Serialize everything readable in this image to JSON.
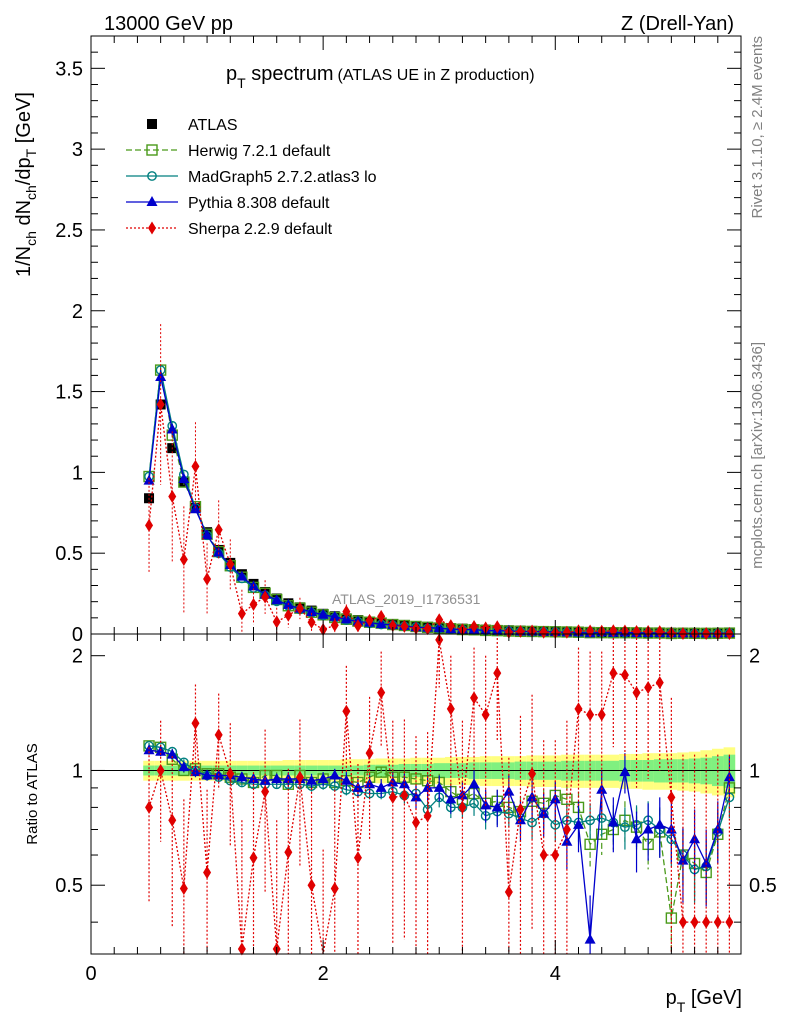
{
  "header": {
    "left": "13000 GeV pp",
    "right": "Z (Drell-Yan)"
  },
  "side_labels": {
    "rivet": "Rivet 3.1.10, ≥ 2.4M events",
    "mcplots": "mcplots.cern.ch [arXiv:1306.3436]"
  },
  "watermark": "ATLAS_2019_I1736531",
  "chart_data": {
    "type": "line",
    "title_main": "p",
    "title_sub": "T",
    "title_rest": " spectrum",
    "title_paren": "(ATLAS UE in Z production)",
    "xlabel_main": "p",
    "xlabel_sub": "T",
    "xlabel_rest": " [GeV]",
    "ylabel": "1/N_ch dN_ch/dp_T [GeV]",
    "ratio_ylabel": "Ratio to ATLAS",
    "xlim": [
      0,
      5.6
    ],
    "ylim": [
      0,
      3.7
    ],
    "ratio_ylim": [
      0.33,
      2.28
    ],
    "xticks": [
      "0",
      "2",
      "4"
    ],
    "yticks": [
      "0",
      "0.5",
      "1",
      "1.5",
      "2",
      "2.5",
      "3",
      "3.5"
    ],
    "ratio_yticks": [
      "0.5",
      "1",
      "2"
    ],
    "x": [
      0.5,
      0.6,
      0.7,
      0.8,
      0.9,
      1.0,
      1.1,
      1.2,
      1.3,
      1.4,
      1.5,
      1.6,
      1.7,
      1.8,
      1.9,
      2.0,
      2.1,
      2.2,
      2.3,
      2.4,
      2.5,
      2.6,
      2.7,
      2.8,
      2.9,
      3.0,
      3.1,
      3.2,
      3.3,
      3.4,
      3.5,
      3.6,
      3.7,
      3.8,
      3.9,
      4.0,
      4.1,
      4.2,
      4.3,
      4.4,
      4.5,
      4.6,
      4.7,
      4.8,
      4.9,
      5.0,
      5.1,
      5.2,
      5.3,
      5.4,
      5.5
    ],
    "atlas": [
      0.84,
      1.42,
      1.15,
      0.94,
      0.78,
      0.63,
      0.52,
      0.44,
      0.37,
      0.31,
      0.26,
      0.22,
      0.19,
      0.165,
      0.145,
      0.125,
      0.11,
      0.097,
      0.086,
      0.076,
      0.068,
      0.061,
      0.055,
      0.049,
      0.044,
      0.04,
      0.036,
      0.033,
      0.03,
      0.027,
      0.025,
      0.023,
      0.021,
      0.019,
      0.018,
      0.016,
      0.015,
      0.014,
      0.013,
      0.012,
      0.011,
      0.0105,
      0.0098,
      0.0092,
      0.0087,
      0.0082,
      0.0077,
      0.0073,
      0.0069,
      0.0066,
      0.0063
    ],
    "band_stat": [
      0.03,
      0.03,
      0.03,
      0.03,
      0.03,
      0.03,
      0.03,
      0.03,
      0.03,
      0.03,
      0.03,
      0.03,
      0.03,
      0.03,
      0.03,
      0.03,
      0.03,
      0.03,
      0.03,
      0.035,
      0.035,
      0.035,
      0.04,
      0.04,
      0.04,
      0.045,
      0.045,
      0.045,
      0.05,
      0.05,
      0.05,
      0.05,
      0.055,
      0.055,
      0.055,
      0.055,
      0.06,
      0.06,
      0.06,
      0.06,
      0.06,
      0.065,
      0.065,
      0.065,
      0.07,
      0.07,
      0.07,
      0.075,
      0.08,
      0.09,
      0.1
    ],
    "band_total": [
      0.06,
      0.06,
      0.06,
      0.06,
      0.06,
      0.06,
      0.06,
      0.06,
      0.06,
      0.06,
      0.06,
      0.06,
      0.065,
      0.065,
      0.065,
      0.065,
      0.065,
      0.07,
      0.07,
      0.07,
      0.075,
      0.075,
      0.075,
      0.08,
      0.08,
      0.08,
      0.085,
      0.085,
      0.085,
      0.09,
      0.09,
      0.09,
      0.09,
      0.095,
      0.095,
      0.095,
      0.1,
      0.1,
      0.1,
      0.1,
      0.1,
      0.105,
      0.105,
      0.11,
      0.11,
      0.11,
      0.115,
      0.12,
      0.13,
      0.14,
      0.15
    ],
    "series": [
      {
        "name": "ATLAS",
        "color": "#000000",
        "marker": "square-filled",
        "values": [
          0.84,
          1.42,
          1.15,
          0.94,
          0.78,
          0.63,
          0.52,
          0.44,
          0.37,
          0.31,
          0.26,
          0.22,
          0.19,
          0.165,
          0.145,
          0.125,
          0.11,
          0.097,
          0.086,
          0.076,
          0.068,
          0.061,
          0.055,
          0.049,
          0.044,
          0.04,
          0.036,
          0.033,
          0.03,
          0.027,
          0.025,
          0.023,
          0.021,
          0.019,
          0.018,
          0.016,
          0.015,
          0.014,
          0.013,
          0.012,
          0.011,
          0.0105,
          0.0098,
          0.0092,
          0.0087,
          0.0082,
          0.0077,
          0.0073,
          0.0069,
          0.0066,
          0.0063
        ]
      },
      {
        "name": "Herwig 7.2.1 default",
        "color": "#4a9a1a",
        "marker": "square-open",
        "dash": "6,3",
        "ratio": [
          1.16,
          1.15,
          1.07,
          1.0,
          1.01,
          0.98,
          0.98,
          0.96,
          0.95,
          0.93,
          0.97,
          0.97,
          0.92,
          0.97,
          0.93,
          0.95,
          0.93,
          0.94,
          0.93,
          0.96,
          0.99,
          0.96,
          0.96,
          0.95,
          0.94,
          0.93,
          0.88,
          0.84,
          0.87,
          0.82,
          0.83,
          0.8,
          0.78,
          0.83,
          0.82,
          0.86,
          0.84,
          0.8,
          0.64,
          0.68,
          0.7,
          0.74,
          0.71,
          0.64,
          0.69,
          0.41,
          0.6,
          0.57,
          0.54,
          0.68,
          0.9
        ],
        "ratio_err": [
          0.02,
          0.02,
          0.02,
          0.02,
          0.02,
          0.02,
          0.02,
          0.02,
          0.02,
          0.02,
          0.02,
          0.02,
          0.02,
          0.03,
          0.03,
          0.03,
          0.03,
          0.03,
          0.03,
          0.03,
          0.03,
          0.04,
          0.04,
          0.04,
          0.04,
          0.05,
          0.05,
          0.05,
          0.06,
          0.06,
          0.06,
          0.06,
          0.07,
          0.07,
          0.07,
          0.07,
          0.08,
          0.08,
          0.08,
          0.08,
          0.08,
          0.09,
          0.09,
          0.09,
          0.1,
          0.1,
          0.1,
          0.1,
          0.1,
          0.1,
          0.1
        ]
      },
      {
        "name": "MadGraph5 2.7.2.atlas3 lo",
        "color": "#007f7f",
        "marker": "circle-open",
        "ratio": [
          1.16,
          1.15,
          1.12,
          1.05,
          1.0,
          0.97,
          0.96,
          0.94,
          0.93,
          0.92,
          0.92,
          0.92,
          0.92,
          0.92,
          0.91,
          0.92,
          0.91,
          0.89,
          0.88,
          0.87,
          0.87,
          0.88,
          0.86,
          0.87,
          0.79,
          0.85,
          0.8,
          0.8,
          0.82,
          0.76,
          0.78,
          0.77,
          0.75,
          0.73,
          0.77,
          0.72,
          0.74,
          0.73,
          0.74,
          0.75,
          0.73,
          0.71,
          0.72,
          0.74,
          0.7,
          0.66,
          0.6,
          0.55,
          0.56,
          0.69,
          0.85
        ],
        "ratio_err": [
          0.02,
          0.02,
          0.02,
          0.02,
          0.02,
          0.02,
          0.02,
          0.02,
          0.02,
          0.02,
          0.02,
          0.02,
          0.02,
          0.03,
          0.03,
          0.03,
          0.03,
          0.03,
          0.03,
          0.03,
          0.03,
          0.04,
          0.04,
          0.04,
          0.04,
          0.05,
          0.05,
          0.05,
          0.06,
          0.06,
          0.06,
          0.06,
          0.07,
          0.07,
          0.07,
          0.07,
          0.08,
          0.08,
          0.08,
          0.08,
          0.08,
          0.09,
          0.09,
          0.09,
          0.1,
          0.1,
          0.1,
          0.1,
          0.1,
          0.1,
          0.1
        ]
      },
      {
        "name": "Pythia 8.308 default",
        "color": "#0000cc",
        "marker": "triangle-filled",
        "ratio": [
          1.13,
          1.12,
          1.1,
          1.02,
          0.99,
          0.97,
          0.97,
          0.97,
          0.96,
          0.95,
          0.94,
          0.95,
          0.95,
          0.95,
          0.94,
          0.95,
          0.97,
          0.94,
          0.9,
          0.92,
          0.9,
          0.93,
          0.92,
          0.85,
          0.9,
          0.9,
          0.84,
          0.86,
          0.92,
          0.81,
          0.8,
          0.88,
          0.74,
          0.85,
          0.77,
          0.84,
          0.65,
          0.72,
          0.36,
          0.89,
          0.73,
          0.99,
          0.66,
          0.7,
          0.72,
          0.7,
          0.58,
          0.66,
          0.57,
          0.7,
          0.96
        ],
        "ratio_err": [
          0.03,
          0.03,
          0.03,
          0.03,
          0.03,
          0.03,
          0.03,
          0.03,
          0.03,
          0.03,
          0.03,
          0.03,
          0.04,
          0.04,
          0.04,
          0.04,
          0.04,
          0.05,
          0.05,
          0.05,
          0.05,
          0.06,
          0.06,
          0.06,
          0.07,
          0.07,
          0.07,
          0.08,
          0.08,
          0.08,
          0.09,
          0.09,
          0.09,
          0.1,
          0.1,
          0.1,
          0.1,
          0.11,
          0.11,
          0.11,
          0.12,
          0.12,
          0.12,
          0.12,
          0.13,
          0.13,
          0.13,
          0.13,
          0.13,
          0.13,
          0.13
        ]
      },
      {
        "name": "Sherpa 2.2.9 default",
        "color": "#e00000",
        "marker": "diamond-filled",
        "dash": "2,2",
        "ratio": [
          0.8,
          1.0,
          0.74,
          0.49,
          1.33,
          0.54,
          1.24,
          0.98,
          0.34,
          0.59,
          0.88,
          0.34,
          0.61,
          0.96,
          0.5,
          0.22,
          0.49,
          1.43,
          0.59,
          1.11,
          1.6,
          0.85,
          0.86,
          0.73,
          0.76,
          2.2,
          1.45,
          0.8,
          1.55,
          1.4,
          1.8,
          0.48,
          0.79,
          0.98,
          0.6,
          0.6,
          0.7,
          1.45,
          1.4,
          1.4,
          1.8,
          1.78,
          1.6,
          1.65,
          1.7,
          0.85,
          0.4,
          0.4,
          0.4,
          0.4,
          0.4
        ],
        "ratio_err": [
          0.35,
          0.35,
          0.35,
          0.35,
          0.35,
          0.35,
          0.35,
          0.35,
          0.4,
          0.4,
          0.4,
          0.4,
          0.4,
          0.4,
          0.4,
          0.4,
          0.4,
          0.45,
          0.45,
          0.45,
          0.45,
          0.5,
          0.5,
          0.5,
          0.5,
          0.55,
          0.55,
          0.55,
          0.55,
          0.6,
          0.6,
          0.6,
          0.6,
          0.6,
          0.6,
          0.6,
          0.65,
          0.65,
          0.65,
          0.65,
          0.65,
          0.7,
          0.7,
          0.7,
          0.7,
          0.7,
          0.7,
          0.7,
          0.7,
          0.7,
          0.7
        ]
      }
    ],
    "legend_placement": "top-left"
  }
}
